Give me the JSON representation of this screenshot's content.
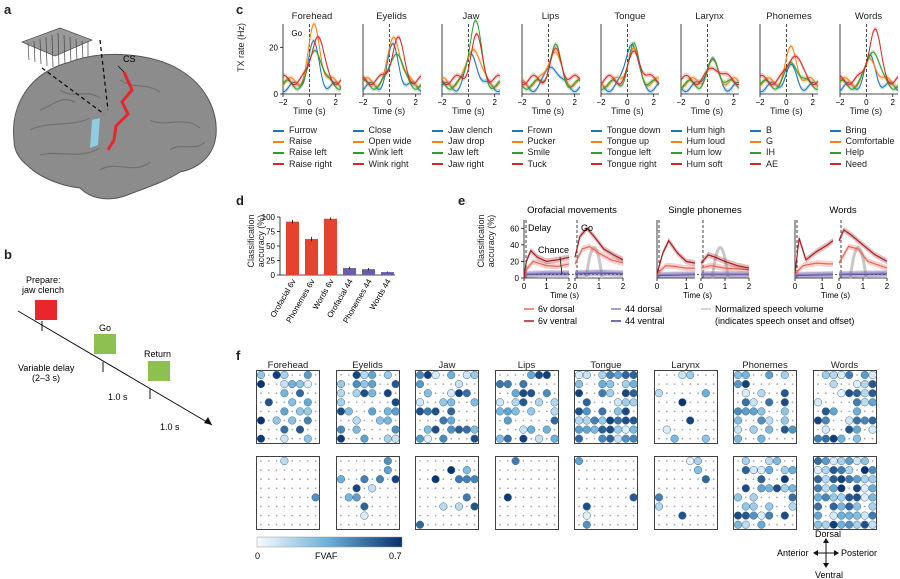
{
  "panel_labels": {
    "a": "a",
    "b": "b",
    "c": "c",
    "d": "d",
    "e": "e",
    "f": "f"
  },
  "panel_a": {
    "cs_label": "CS"
  },
  "panel_b": {
    "prepare_label": "Prepare:",
    "prepare_sub": "jaw clench",
    "go_label": "Go",
    "return_label": "Return",
    "delay_label": "Variable delay",
    "delay_sub": "(2–3 s)",
    "interval1": "1.0 s",
    "interval2": "1.0 s",
    "colors": {
      "prepare": "#e8262c",
      "go": "#8cc152",
      "return": "#8cc152"
    }
  },
  "panel_c": {
    "ylabel": "TX rate (Hz)",
    "xlabel": "Time (s)",
    "go_label": "Go",
    "yticks": [
      "0",
      "20"
    ],
    "xticks": [
      "−2",
      "0",
      "2"
    ],
    "series_colors": [
      "#1f77b4",
      "#ff7f0e",
      "#2ca02c",
      "#d62728"
    ],
    "panels": [
      {
        "title": "Forehead",
        "legend": [
          "Furrow",
          "Raise",
          "Raise left",
          "Raise right"
        ]
      },
      {
        "title": "Eyelids",
        "legend": [
          "Close",
          "Open wide",
          "Wink left",
          "Wink right"
        ]
      },
      {
        "title": "Jaw",
        "legend": [
          "Jaw clench",
          "Jaw drop",
          "Jaw left",
          "Jaw right"
        ]
      },
      {
        "title": "Lips",
        "legend": [
          "Frown",
          "Pucker",
          "Smile",
          "Tuck"
        ]
      },
      {
        "title": "Tongue",
        "legend": [
          "Tongue down",
          "Tongue up",
          "Tongue left",
          "Tongue right"
        ]
      },
      {
        "title": "Larynx",
        "legend": [
          "Hum high",
          "Hum loud",
          "Hum low",
          "Hum soft"
        ]
      },
      {
        "title": "Phonemes",
        "legend": [
          "B",
          "G",
          "IH",
          "AE"
        ]
      },
      {
        "title": "Words",
        "legend": [
          "Bring",
          "Comfortable",
          "Help",
          "Need"
        ]
      }
    ]
  },
  "chart_data": [
    {
      "type": "bar",
      "panel": "d",
      "categories": [
        "Orofacial 6v",
        "Phonemes 6v",
        "Words 6v",
        "Orofacial 44",
        "Phonemes 44",
        "Words 44"
      ],
      "values": [
        92,
        62,
        97,
        12,
        10,
        5
      ],
      "errors": [
        3,
        4,
        2,
        2,
        2,
        1
      ],
      "colors": [
        "#e5432f",
        "#e5432f",
        "#e5432f",
        "#6a5ca8",
        "#6a5ca8",
        "#6a5ca8"
      ],
      "ylabel": "Classification accuracy (%)",
      "yticks": [
        "0",
        "25",
        "50",
        "75",
        "100"
      ],
      "ylim": [
        0,
        100
      ]
    },
    {
      "type": "line",
      "panel": "e",
      "ylabel": "Classification accuracy (%)",
      "xlabel": "Time (s)",
      "yticks": [
        "0",
        "20",
        "40",
        "60"
      ],
      "ylim": [
        0,
        70
      ],
      "subplots": [
        {
          "title": "Orofacial movements",
          "ticks_a": [
            "0",
            "1",
            "2"
          ],
          "ticks_b": [
            "0",
            "1",
            "2"
          ],
          "series": {
            "6v ventral": {
              "a": [
                [
                  0,
                  0
                ],
                [
                  0.1,
                  20
                ],
                [
                  0.3,
                  33
                ],
                [
                  0.6,
                  25
                ],
                [
                  1.0,
                  20
                ],
                [
                  1.5,
                  22
                ],
                [
                  2.0,
                  25
                ]
              ],
              "b": [
                [
                  0,
                  25
                ],
                [
                  0.2,
                  50
                ],
                [
                  0.5,
                  60
                ],
                [
                  0.8,
                  50
                ],
                [
                  1.2,
                  35
                ],
                [
                  1.6,
                  28
                ],
                [
                  2,
                  22
                ]
              ]
            },
            "6v dorsal": {
              "a": [
                [
                  0,
                  0
                ],
                [
                  0.1,
                  10
                ],
                [
                  0.4,
                  20
                ],
                [
                  1.0,
                  15
                ],
                [
                  1.5,
                  14
                ],
                [
                  2.0,
                  17
                ]
              ],
              "b": [
                [
                  0,
                  17
                ],
                [
                  0.3,
                  35
                ],
                [
                  0.6,
                  38
                ],
                [
                  1.0,
                  30
                ],
                [
                  1.5,
                  22
                ],
                [
                  2,
                  18
                ]
              ]
            },
            "44 dorsal": {
              "a": [
                [
                  0,
                  5
                ],
                [
                  1,
                  6
                ],
                [
                  2,
                  6
                ]
              ],
              "b": [
                [
                  0,
                  6
                ],
                [
                  1,
                  7
                ],
                [
                  2,
                  6
                ]
              ]
            },
            "44 ventral": {
              "a": [
                [
                  0,
                  4
                ],
                [
                  1,
                  5
                ],
                [
                  2,
                  5
                ]
              ],
              "b": [
                [
                  0,
                  5
                ],
                [
                  1,
                  6
                ],
                [
                  2,
                  5
                ]
              ]
            }
          }
        },
        {
          "title": "Single phonemes",
          "ticks_a": [
            "0",
            "1"
          ],
          "ticks_b": [
            "0",
            "1",
            "2"
          ],
          "series": {
            "6v ventral": {
              "a": [
                [
                  0,
                  5
                ],
                [
                  0.2,
                  30
                ],
                [
                  0.4,
                  45
                ],
                [
                  0.7,
                  30
                ],
                [
                  1.0,
                  20
                ],
                [
                  1.3,
                  18
                ]
              ],
              "b": [
                [
                  0,
                  18
                ],
                [
                  0.3,
                  28
                ],
                [
                  0.6,
                  25
                ],
                [
                  1.0,
                  20
                ],
                [
                  1.5,
                  15
                ],
                [
                  2,
                  12
                ]
              ]
            },
            "6v dorsal": {
              "a": [
                [
                  0,
                  5
                ],
                [
                  0.3,
                  15
                ],
                [
                  0.6,
                  14
                ],
                [
                  1.0,
                  12
                ],
                [
                  1.3,
                  12
                ]
              ],
              "b": [
                [
                  0,
                  12
                ],
                [
                  0.4,
                  15
                ],
                [
                  1,
                  12
                ],
                [
                  2,
                  10
                ]
              ]
            },
            "44 dorsal": {
              "a": [
                [
                  0,
                  4
                ],
                [
                  1.3,
                  5
                ]
              ],
              "b": [
                [
                  0,
                  5
                ],
                [
                  2,
                  5
                ]
              ]
            },
            "44 ventral": {
              "a": [
                [
                  0,
                  3
                ],
                [
                  1.3,
                  4
                ]
              ],
              "b": [
                [
                  0,
                  4
                ],
                [
                  2,
                  4
                ]
              ]
            }
          }
        },
        {
          "title": "Words",
          "ticks_a": [
            "0",
            "1"
          ],
          "ticks_b": [
            "0",
            "1",
            "2"
          ],
          "series": {
            "6v ventral": {
              "a": [
                [
                  0,
                  5
                ],
                [
                  0.15,
                  48
                ],
                [
                  0.4,
                  22
                ],
                [
                  0.8,
                  32
                ],
                [
                  1.2,
                  40
                ],
                [
                  1.4,
                  45
                ]
              ],
              "b": [
                [
                  0,
                  45
                ],
                [
                  0.2,
                  58
                ],
                [
                  0.5,
                  52
                ],
                [
                  1.0,
                  40
                ],
                [
                  1.5,
                  28
                ],
                [
                  2,
                  20
                ]
              ]
            },
            "6v dorsal": {
              "a": [
                [
                  0,
                  5
                ],
                [
                  0.3,
                  15
                ],
                [
                  0.8,
                  18
                ],
                [
                  1.2,
                  17
                ],
                [
                  1.4,
                  17
                ]
              ],
              "b": [
                [
                  0,
                  18
                ],
                [
                  0.4,
                  38
                ],
                [
                  0.8,
                  35
                ],
                [
                  1.2,
                  20
                ],
                [
                  2,
                  12
                ]
              ]
            },
            "44 dorsal": {
              "a": [
                [
                  0,
                  4
                ],
                [
                  1.4,
                  5
                ]
              ],
              "b": [
                [
                  0,
                  5
                ],
                [
                  2,
                  6
                ]
              ]
            },
            "44 ventral": {
              "a": [
                [
                  0,
                  3
                ],
                [
                  1.4,
                  4
                ]
              ],
              "b": [
                [
                  0,
                  4
                ],
                [
                  2,
                  5
                ]
              ]
            }
          }
        }
      ],
      "annotations": {
        "delay": "Delay",
        "chance": "Chance",
        "go": "Go"
      },
      "legend": [
        {
          "name": "6v dorsal",
          "color": "#e8675a"
        },
        {
          "name": "6v ventral",
          "color": "#a31f25"
        },
        {
          "name": "44 dorsal",
          "color": "#8a7fc0"
        },
        {
          "name": "44 ventral",
          "color": "#4b3d8c"
        },
        {
          "name": "Normalized speech volume",
          "color": "#c8c8c8"
        },
        {
          "name": "(indicates speech onset and offset)",
          "color": ""
        }
      ]
    }
  ],
  "panel_f": {
    "titles": [
      "Forehead",
      "Eyelids",
      "Jaw",
      "Lips",
      "Tongue",
      "Larynx",
      "Phonemes",
      "Words"
    ],
    "colorbar": {
      "min": "0",
      "max": "0.7",
      "label": "FVAF"
    },
    "compass": {
      "dorsal": "Dorsal",
      "ventral": "Ventral",
      "anterior": "Anterior",
      "posterior": "Posterior"
    }
  }
}
